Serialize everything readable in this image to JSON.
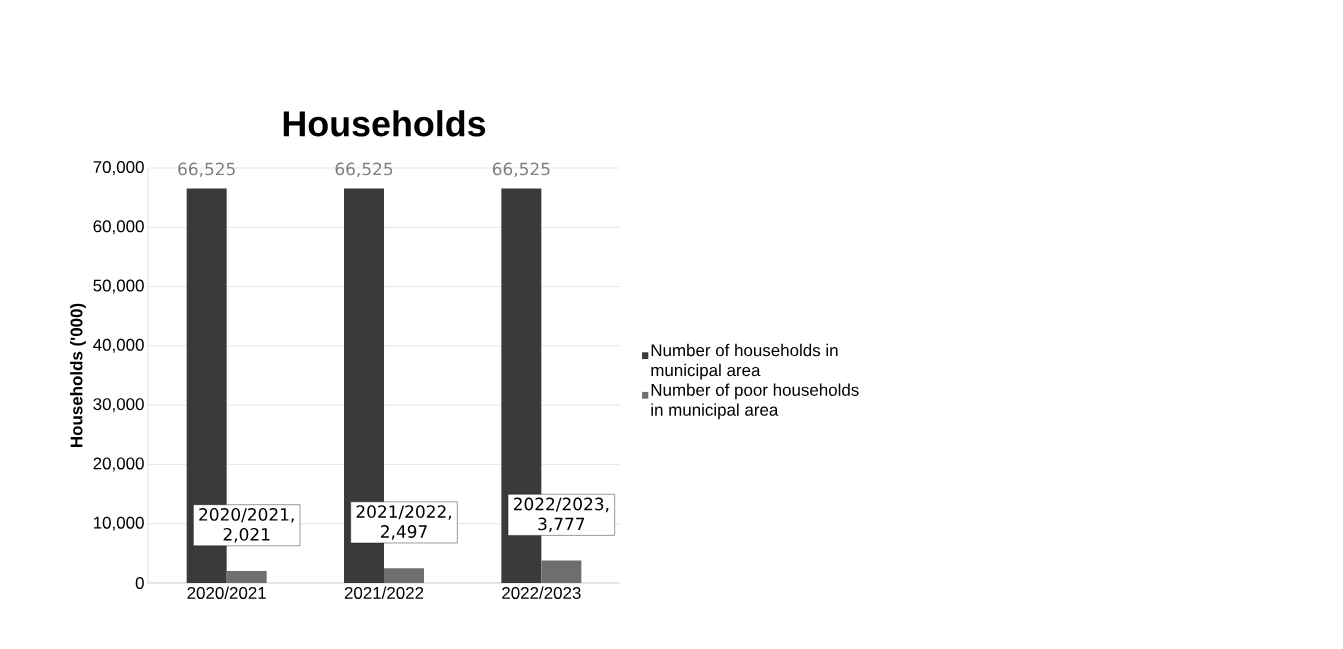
{
  "chart_data": {
    "type": "bar",
    "title": "Households",
    "ylabel": "Households ('000)",
    "categories": [
      "2020/2021",
      "2021/2022",
      "2022/2023"
    ],
    "series": [
      {
        "name": "Number of households in municipal area",
        "color": "#3a3a3a",
        "values": [
          66525,
          66525,
          66525
        ],
        "value_labels": [
          "66,525",
          "66,525",
          "66,525"
        ]
      },
      {
        "name": "Number of poor households in municipal area",
        "color": "#6e6e6e",
        "values": [
          2021,
          2497,
          3777
        ],
        "value_labels": [
          "2020/2021, 2,021",
          "2021/2022, 2,497",
          "2022/2023, 3,777"
        ]
      }
    ],
    "ylim": [
      0,
      70000
    ],
    "yticks": [
      {
        "value": 0,
        "label": "0"
      },
      {
        "value": 10000,
        "label": "10,000"
      },
      {
        "value": 20000,
        "label": "20,000"
      },
      {
        "value": 30000,
        "label": "30,000"
      },
      {
        "value": 40000,
        "label": "40,000"
      },
      {
        "value": 50000,
        "label": "50,000"
      },
      {
        "value": 60000,
        "label": "60,000"
      },
      {
        "value": 70000,
        "label": "70,000"
      }
    ],
    "grid": "y",
    "legend": "right"
  }
}
